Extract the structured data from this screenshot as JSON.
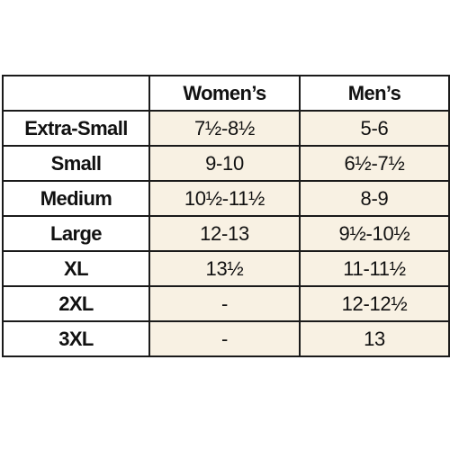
{
  "table": {
    "columns": [
      "Women’s",
      "Men’s"
    ],
    "rows": [
      [
        "Extra-Small",
        "7½-8½",
        "5-6"
      ],
      [
        "Small",
        "9-10",
        "6½-7½"
      ],
      [
        "Medium",
        "10½-11½",
        "8-9"
      ],
      [
        "Large",
        "12-13",
        "9½-10½"
      ],
      [
        "XL",
        "13½",
        "11-11½"
      ],
      [
        "2XL",
        "-",
        "12-12½"
      ],
      [
        "3XL",
        "-",
        "13"
      ]
    ]
  }
}
